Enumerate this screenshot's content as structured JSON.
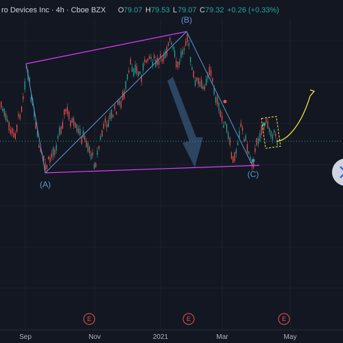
{
  "header": {
    "symbol_text": "ro Devices Inc · 4h · Cboe BZX",
    "open_label": "O",
    "open_value": "79.07",
    "high_label": "H",
    "high_value": "79.53",
    "low_label": "L",
    "low_value": "79.07",
    "close_label": "C",
    "close_value": "79.32",
    "change_value": "+0.26 (+0.33%)"
  },
  "colors": {
    "background": "#131722",
    "up": "#26a69a",
    "down": "#ef5350",
    "channel": "#e040fb",
    "wave": "#5b9bd5",
    "projection": "#ffeb3b",
    "earnings": "#ef5350"
  },
  "wave_labels": {
    "a": "(A)",
    "b": "(B)",
    "c": "(C)"
  },
  "earnings_marker": "E",
  "chart_data": {
    "type": "candlestick",
    "x_tick_labels": [
      "Sep",
      "Nov",
      "2021",
      "Mar",
      "May"
    ],
    "pivots": {
      "start": {
        "time": "late Aug 2020",
        "price": 91
      },
      "A": {
        "time": "Sep 2020",
        "price": 74.5
      },
      "B": {
        "time": "Jan 2021",
        "price": 99
      },
      "C": {
        "time": "Mar 2021",
        "price": 76
      }
    },
    "current_price": 79.32,
    "earnings_events": [
      "Oct 2020",
      "Jan 2021",
      "Apr 2021"
    ]
  }
}
